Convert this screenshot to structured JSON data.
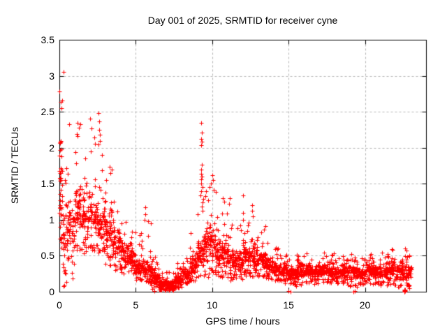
{
  "chart_data": {
    "type": "scatter",
    "title": "Day 001 of 2025, SRMTID for receiver cyne",
    "xlabel": "GPS time / hours",
    "ylabel": "SRMTID / TECUs",
    "legend": "none",
    "grid": true,
    "xlim": [
      0,
      24
    ],
    "ylim": [
      0,
      3.5
    ],
    "xticks": [
      0,
      5,
      10,
      15,
      20
    ],
    "xtick_labels": [
      "0",
      "5",
      "10",
      "15",
      "20"
    ],
    "yticks": [
      0,
      0.5,
      1,
      1.5,
      2,
      2.5,
      3,
      3.5
    ],
    "ytick_labels": [
      "0",
      "0.5",
      "1",
      "1.5",
      "2",
      "2.5",
      "3",
      "3.5"
    ],
    "series_name": "SRMTID",
    "marker": {
      "shape": "plus",
      "size": 7,
      "color": "#ff0000"
    },
    "colors": {
      "points": "#ff0000",
      "axis": "#000000",
      "grid": "#b3b3b3",
      "background": "#ffffff",
      "text": "#000000"
    },
    "seed": 20250101,
    "density_bins_format": [
      "t_start_h",
      "t_end_h",
      "n_points",
      "y_min",
      "y_max",
      "core_lo",
      "core_hi"
    ],
    "density_bins": [
      [
        0.0,
        0.12,
        38,
        0.6,
        2.1,
        0.75,
        2.05
      ],
      [
        0.12,
        0.5,
        45,
        0.08,
        2.1,
        0.3,
        1.6
      ],
      [
        0.5,
        1.0,
        55,
        0.15,
        2.0,
        0.5,
        1.3
      ],
      [
        1.0,
        1.5,
        60,
        0.5,
        2.15,
        0.65,
        1.6
      ],
      [
        1.5,
        2.0,
        60,
        0.5,
        2.1,
        0.65,
        1.5
      ],
      [
        2.0,
        2.5,
        60,
        0.55,
        2.3,
        0.65,
        1.4
      ],
      [
        2.5,
        3.0,
        60,
        0.5,
        2.1,
        0.6,
        1.3
      ],
      [
        3.0,
        3.5,
        60,
        0.35,
        1.75,
        0.5,
        1.1
      ],
      [
        3.5,
        4.0,
        60,
        0.3,
        1.4,
        0.4,
        0.95
      ],
      [
        4.0,
        4.5,
        60,
        0.25,
        1.3,
        0.35,
        0.75
      ],
      [
        4.5,
        5.0,
        60,
        0.2,
        1.05,
        0.3,
        0.65
      ],
      [
        5.0,
        5.5,
        60,
        0.15,
        0.9,
        0.2,
        0.5
      ],
      [
        5.5,
        6.0,
        60,
        0.1,
        1.0,
        0.15,
        0.45
      ],
      [
        6.0,
        6.5,
        60,
        0.03,
        0.55,
        0.08,
        0.3
      ],
      [
        6.5,
        7.0,
        70,
        0.02,
        0.3,
        0.05,
        0.18
      ],
      [
        7.0,
        7.5,
        70,
        0.02,
        0.28,
        0.04,
        0.16
      ],
      [
        7.5,
        8.0,
        70,
        0.05,
        0.4,
        0.08,
        0.25
      ],
      [
        8.0,
        8.5,
        65,
        0.1,
        0.55,
        0.15,
        0.35
      ],
      [
        8.5,
        9.0,
        60,
        0.15,
        0.9,
        0.2,
        0.55
      ],
      [
        9.0,
        9.5,
        60,
        0.2,
        1.1,
        0.3,
        0.8
      ],
      [
        9.5,
        10.0,
        60,
        0.2,
        1.45,
        0.35,
        1.0
      ],
      [
        10.0,
        10.5,
        60,
        0.2,
        1.4,
        0.3,
        0.85
      ],
      [
        10.5,
        11.0,
        60,
        0.2,
        1.3,
        0.3,
        0.75
      ],
      [
        11.0,
        11.5,
        60,
        0.15,
        1.25,
        0.25,
        0.65
      ],
      [
        11.5,
        12.0,
        60,
        0.15,
        1.0,
        0.25,
        0.6
      ],
      [
        12.0,
        12.5,
        60,
        0.2,
        1.1,
        0.3,
        0.75
      ],
      [
        12.5,
        13.0,
        60,
        0.2,
        1.0,
        0.3,
        0.7
      ],
      [
        13.0,
        13.5,
        60,
        0.2,
        0.95,
        0.28,
        0.6
      ],
      [
        13.5,
        14.0,
        60,
        0.15,
        0.8,
        0.25,
        0.5
      ],
      [
        14.0,
        14.5,
        60,
        0.15,
        0.62,
        0.2,
        0.45
      ],
      [
        14.5,
        15.0,
        60,
        0.1,
        0.55,
        0.17,
        0.4
      ],
      [
        15.0,
        15.5,
        60,
        0.08,
        0.5,
        0.15,
        0.35
      ],
      [
        15.5,
        16.0,
        60,
        0.1,
        0.55,
        0.18,
        0.42
      ],
      [
        16.0,
        16.5,
        60,
        0.12,
        0.55,
        0.2,
        0.42
      ],
      [
        16.5,
        17.0,
        60,
        0.1,
        0.5,
        0.16,
        0.35
      ],
      [
        17.0,
        17.5,
        60,
        0.1,
        0.55,
        0.18,
        0.42
      ],
      [
        17.5,
        18.0,
        60,
        0.1,
        0.6,
        0.18,
        0.45
      ],
      [
        18.0,
        18.5,
        60,
        0.1,
        0.5,
        0.16,
        0.36
      ],
      [
        18.5,
        19.0,
        60,
        0.08,
        0.55,
        0.18,
        0.42
      ],
      [
        19.0,
        19.5,
        60,
        0.06,
        0.55,
        0.15,
        0.4
      ],
      [
        19.5,
        20.0,
        60,
        0.1,
        0.5,
        0.15,
        0.35
      ],
      [
        20.0,
        20.5,
        60,
        0.1,
        0.55,
        0.2,
        0.42
      ],
      [
        20.5,
        21.0,
        60,
        0.1,
        0.5,
        0.17,
        0.37
      ],
      [
        21.0,
        21.5,
        60,
        0.08,
        0.55,
        0.15,
        0.4
      ],
      [
        21.5,
        22.0,
        60,
        0.1,
        0.6,
        0.2,
        0.45
      ],
      [
        22.0,
        22.5,
        60,
        0.05,
        0.55,
        0.15,
        0.4
      ],
      [
        22.5,
        23.05,
        55,
        0.03,
        0.62,
        0.1,
        0.45
      ]
    ],
    "outlier_points": [
      [
        0.27,
        3.05
      ],
      [
        0.02,
        2.78
      ],
      [
        0.07,
        2.64
      ],
      [
        0.16,
        2.66
      ],
      [
        0.12,
        2.55
      ],
      [
        0.64,
        2.33
      ],
      [
        1.19,
        2.35
      ],
      [
        1.28,
        2.28
      ],
      [
        1.37,
        2.33
      ],
      [
        1.12,
        2.19
      ],
      [
        1.18,
        2.16
      ],
      [
        2.0,
        2.4
      ],
      [
        2.56,
        2.48
      ],
      [
        2.6,
        2.37
      ],
      [
        2.62,
        2.25
      ],
      [
        2.65,
        2.18
      ],
      [
        2.58,
        2.05
      ],
      [
        2.66,
        2.09
      ],
      [
        2.05,
        1.95
      ],
      [
        2.8,
        1.9
      ],
      [
        3.3,
        1.74
      ],
      [
        3.45,
        1.7
      ],
      [
        5.6,
        1.17
      ],
      [
        5.62,
        1.08
      ],
      [
        5.58,
        1.0
      ],
      [
        9.3,
        2.35
      ],
      [
        9.32,
        2.21
      ],
      [
        9.29,
        2.12
      ],
      [
        9.33,
        2.08
      ],
      [
        9.28,
        2.04
      ],
      [
        9.31,
        1.76
      ],
      [
        9.27,
        1.7
      ],
      [
        9.3,
        1.64
      ],
      [
        9.34,
        1.6
      ],
      [
        9.26,
        1.56
      ],
      [
        9.3,
        1.5
      ],
      [
        9.36,
        1.45
      ],
      [
        9.3,
        1.4
      ],
      [
        9.25,
        1.34
      ],
      [
        9.4,
        1.29
      ],
      [
        9.35,
        1.24
      ],
      [
        9.31,
        1.18
      ],
      [
        9.38,
        1.12
      ],
      [
        9.85,
        1.45
      ],
      [
        9.92,
        1.5
      ],
      [
        10.0,
        1.62
      ],
      [
        10.05,
        1.55
      ],
      [
        10.1,
        1.42
      ],
      [
        10.22,
        1.39
      ],
      [
        10.7,
        1.3
      ],
      [
        10.8,
        1.25
      ],
      [
        11.1,
        1.22
      ],
      [
        11.15,
        1.3
      ],
      [
        12.0,
        1.34
      ],
      [
        12.6,
        1.2
      ],
      [
        12.62,
        1.12
      ],
      [
        12.65,
        1.05
      ],
      [
        22.65,
        0.6
      ],
      [
        22.7,
        0.57
      ]
    ],
    "zero_points": [
      [
        6.2,
        0.01
      ],
      [
        15.0,
        0.01
      ],
      [
        15.12,
        0.0
      ],
      [
        19.25,
        0.0
      ],
      [
        19.33,
        0.01
      ],
      [
        22.56,
        0.01
      ],
      [
        22.58,
        0.0
      ],
      [
        22.6,
        0.02
      ],
      [
        22.62,
        0.01
      ],
      [
        22.6,
        0.0
      ],
      [
        22.64,
        0.02
      ],
      [
        22.58,
        0.03
      ],
      [
        22.62,
        0.03
      ]
    ]
  }
}
